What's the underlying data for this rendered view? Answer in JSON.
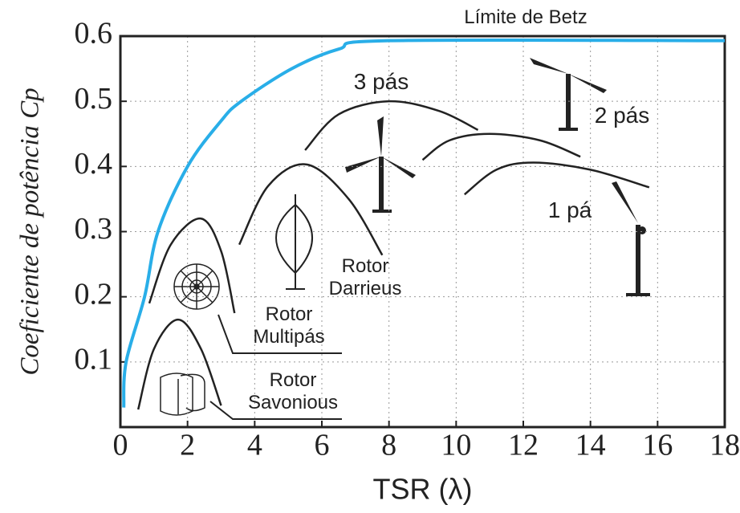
{
  "chart_data": {
    "type": "line",
    "xlabel": "TSR (λ)",
    "ylabel": "Coeficiente de potência Cp",
    "xlim": [
      0,
      18
    ],
    "ylim": [
      0,
      0.6
    ],
    "xticks": [
      0,
      2,
      4,
      6,
      8,
      10,
      12,
      14,
      16,
      18
    ],
    "yticks": [
      0.1,
      0.2,
      0.3,
      0.4,
      0.5,
      0.6
    ],
    "grid": true,
    "series": [
      {
        "name": "Límite de Betz",
        "color": "#29aee8",
        "x": [
          0.1,
          0.17,
          0.72,
          1.12,
          2.0,
          3.0,
          3.6,
          5.1,
          6.5,
          8,
          18
        ],
        "values": [
          0.03,
          0.1,
          0.2,
          0.3,
          0.4,
          0.47,
          0.5,
          0.55,
          0.58,
          0.593,
          0.593
        ]
      },
      {
        "name": "Rotor Savonious",
        "color": "#222222",
        "x": [
          0.53,
          1.0,
          1.72,
          2.4,
          3.0
        ],
        "values": [
          0.027,
          0.12,
          0.165,
          0.12,
          0.033
        ]
      },
      {
        "name": "Rotor Multipás",
        "color": "#222222",
        "x": [
          0.86,
          1.5,
          2.4,
          3.0,
          3.4
        ],
        "values": [
          0.19,
          0.28,
          0.32,
          0.27,
          0.175
        ]
      },
      {
        "name": "Rotor Darrieus",
        "color": "#222222",
        "x": [
          3.54,
          4.4,
          5.55,
          6.8,
          7.8
        ],
        "values": [
          0.28,
          0.37,
          0.403,
          0.35,
          0.264
        ]
      },
      {
        "name": "3 pás",
        "color": "#222222",
        "x": [
          5.5,
          6.5,
          8.0,
          9.5,
          10.65
        ],
        "values": [
          0.425,
          0.48,
          0.5,
          0.485,
          0.456
        ]
      },
      {
        "name": "2 pás",
        "color": "#222222",
        "x": [
          9.0,
          9.8,
          11.0,
          12.5,
          13.7
        ],
        "values": [
          0.41,
          0.44,
          0.45,
          0.44,
          0.415
        ]
      },
      {
        "name": "1 pá",
        "color": "#222222",
        "x": [
          10.25,
          11.2,
          12.3,
          14.0,
          15.75
        ],
        "values": [
          0.357,
          0.395,
          0.406,
          0.395,
          0.368
        ]
      }
    ]
  }
}
